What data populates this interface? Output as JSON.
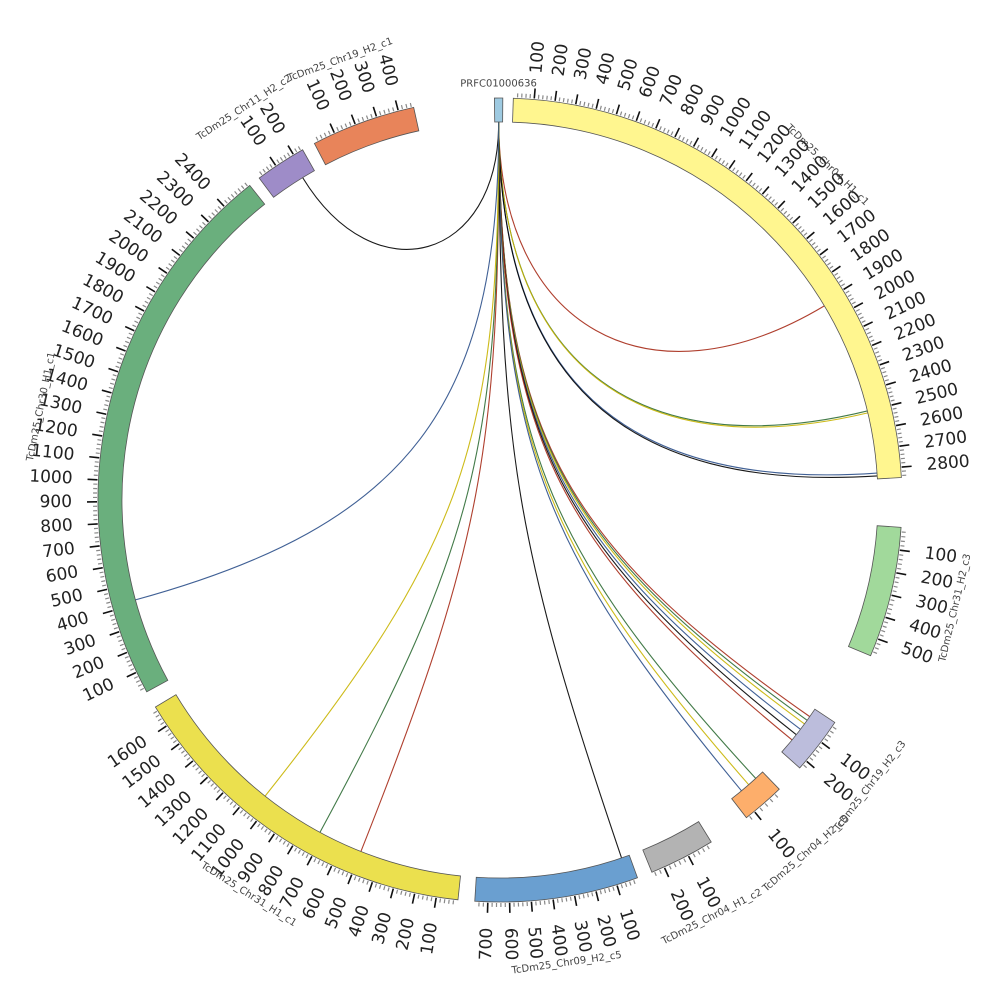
{
  "chart_data": {
    "type": "chord",
    "chromosomes": [
      {
        "name": "PRFC01000636",
        "length": 15,
        "color": "#9ecae1",
        "ticks": []
      },
      {
        "name": "TcDm25_Chr04_H1_c1",
        "length": 2850,
        "color": "#fff68f",
        "ticks": [
          "100",
          "200",
          "300",
          "400",
          "500",
          "600",
          "700",
          "800",
          "900",
          "1000",
          "1100",
          "1200",
          "1300",
          "1400",
          "1500",
          "1600",
          "1700",
          "1800",
          "1900",
          "2000",
          "2100",
          "2200",
          "2300",
          "2400",
          "2500",
          "2600",
          "2700",
          "2800"
        ]
      },
      {
        "name": "TcDm25_Chr31_H2_c3",
        "length": 580,
        "color": "#a1d99b",
        "ticks": [
          "100",
          "200",
          "300",
          "400",
          "500"
        ]
      },
      {
        "name": "TcDm25_Chr19_H2_c3",
        "length": 240,
        "color": "#bcbddc",
        "ticks": [
          "100",
          "200"
        ]
      },
      {
        "name": "TcDm25_Chr04_H2_c5",
        "length": 130,
        "color": "#fdae6b",
        "ticks": [
          "100"
        ]
      },
      {
        "name": "TcDm25_Chr04_H1_c2",
        "length": 250,
        "color": "#b3b3b3",
        "ticks": [
          "100",
          "200"
        ]
      },
      {
        "name": "TcDm25_Chr09_H2_c5",
        "length": 760,
        "color": "#6a9fd0",
        "ticks": [
          "100",
          "200",
          "300",
          "400",
          "500",
          "600",
          "700"
        ]
      },
      {
        "name": "TcDm25_Chr31_H1_c1",
        "length": 1700,
        "color": "#ebe04e",
        "ticks": [
          "100",
          "200",
          "300",
          "400",
          "500",
          "600",
          "700",
          "800",
          "900",
          "1000",
          "1100",
          "1200",
          "1300",
          "1400",
          "1500",
          "1600"
        ]
      },
      {
        "name": "TcDm25_Chr30_H1_c1",
        "length": 2550,
        "color": "#6aaf7d",
        "ticks": [
          "100",
          "200",
          "300",
          "400",
          "500",
          "600",
          "700",
          "800",
          "900",
          "1000",
          "1100",
          "1200",
          "1300",
          "1400",
          "1500",
          "1600",
          "1700",
          "1800",
          "1900",
          "2000",
          "2100",
          "2200",
          "2300",
          "2400"
        ]
      },
      {
        "name": "TcDm25_Chr11_H2_c2",
        "length": 250,
        "color": "#9e8cc8",
        "ticks": [
          "100",
          "200"
        ]
      },
      {
        "name": "TcDm25_Chr19_H2_c1",
        "length": 470,
        "color": "#e8845a",
        "ticks": [
          "100",
          "200",
          "300",
          "400"
        ]
      }
    ],
    "links": [
      {
        "source": 0,
        "target": "TcDm25_Chr11_H2_c2",
        "pos": 180
      },
      {
        "source": 0,
        "target": "TcDm25_Chr04_H1_c1",
        "pos": 1920
      },
      {
        "source": 0,
        "target": "TcDm25_Chr04_H1_c1",
        "pos": 2500
      },
      {
        "source": 0,
        "target": "TcDm25_Chr04_H1_c1",
        "pos": 2510
      },
      {
        "source": 0,
        "target": "TcDm25_Chr04_H1_c1",
        "pos": 2820
      },
      {
        "source": 0,
        "target": "TcDm25_Chr04_H1_c1",
        "pos": 2835
      },
      {
        "source": 0,
        "target": "TcDm25_Chr19_H2_c3",
        "pos": 40
      },
      {
        "source": 0,
        "target": "TcDm25_Chr19_H2_c3",
        "pos": 60
      },
      {
        "source": 0,
        "target": "TcDm25_Chr19_H2_c3",
        "pos": 80
      },
      {
        "source": 0,
        "target": "TcDm25_Chr19_H2_c3",
        "pos": 110
      },
      {
        "source": 0,
        "target": "TcDm25_Chr19_H2_c3",
        "pos": 140
      },
      {
        "source": 0,
        "target": "TcDm25_Chr19_H2_c3",
        "pos": 170
      },
      {
        "source": 0,
        "target": "TcDm25_Chr04_H2_c5",
        "pos": 30
      },
      {
        "source": 0,
        "target": "TcDm25_Chr04_H2_c5",
        "pos": 60
      },
      {
        "source": 0,
        "target": "TcDm25_Chr04_H2_c5",
        "pos": 90
      },
      {
        "source": 0,
        "target": "TcDm25_Chr09_H2_c5",
        "pos": 40
      },
      {
        "source": 0,
        "target": "TcDm25_Chr31_H1_c1",
        "pos": 500
      },
      {
        "source": 0,
        "target": "TcDm25_Chr31_H1_c1",
        "pos": 720
      },
      {
        "source": 0,
        "target": "TcDm25_Chr31_H1_c1",
        "pos": 1040
      },
      {
        "source": 0,
        "target": "TcDm25_Chr30_H1_c1",
        "pos": 420
      }
    ],
    "link_colors": [
      "#000000",
      "#a62a17",
      "#2e6b34",
      "#c8b400",
      "#2b4f8a"
    ]
  }
}
